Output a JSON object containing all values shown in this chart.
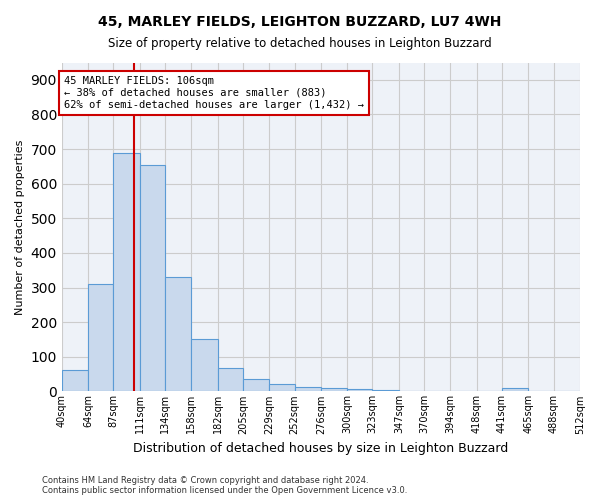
{
  "title1": "45, MARLEY FIELDS, LEIGHTON BUZZARD, LU7 4WH",
  "title2": "Size of property relative to detached houses in Leighton Buzzard",
  "xlabel": "Distribution of detached houses by size in Leighton Buzzard",
  "ylabel": "Number of detached properties",
  "bar_edges": [
    40,
    64,
    87,
    111,
    134,
    158,
    182,
    205,
    229,
    252,
    276,
    300,
    323,
    347,
    370,
    394,
    418,
    441,
    465,
    488,
    512
  ],
  "bar_heights": [
    62,
    310,
    688,
    655,
    330,
    151,
    68,
    35,
    20,
    12,
    10,
    8,
    5,
    0,
    0,
    0,
    0,
    9,
    0,
    0
  ],
  "bar_color": "#c9d9ed",
  "bar_edge_color": "#5b9bd5",
  "property_line_x": 106,
  "annotation_text": "45 MARLEY FIELDS: 106sqm\n← 38% of detached houses are smaller (883)\n62% of semi-detached houses are larger (1,432) →",
  "annotation_box_color": "#ffffff",
  "annotation_box_edge_color": "#cc0000",
  "vline_color": "#cc0000",
  "ylim": [
    0,
    950
  ],
  "yticks": [
    0,
    100,
    200,
    300,
    400,
    500,
    600,
    700,
    800,
    900
  ],
  "grid_color": "#cccccc",
  "bg_color": "#eef2f8",
  "footnote": "Contains HM Land Registry data © Crown copyright and database right 2024.\nContains public sector information licensed under the Open Government Licence v3.0.",
  "tick_labels": [
    "40sqm",
    "64sqm",
    "87sqm",
    "111sqm",
    "134sqm",
    "158sqm",
    "182sqm",
    "205sqm",
    "229sqm",
    "252sqm",
    "276sqm",
    "300sqm",
    "323sqm",
    "347sqm",
    "370sqm",
    "394sqm",
    "418sqm",
    "441sqm",
    "465sqm",
    "488sqm",
    "512sqm"
  ]
}
